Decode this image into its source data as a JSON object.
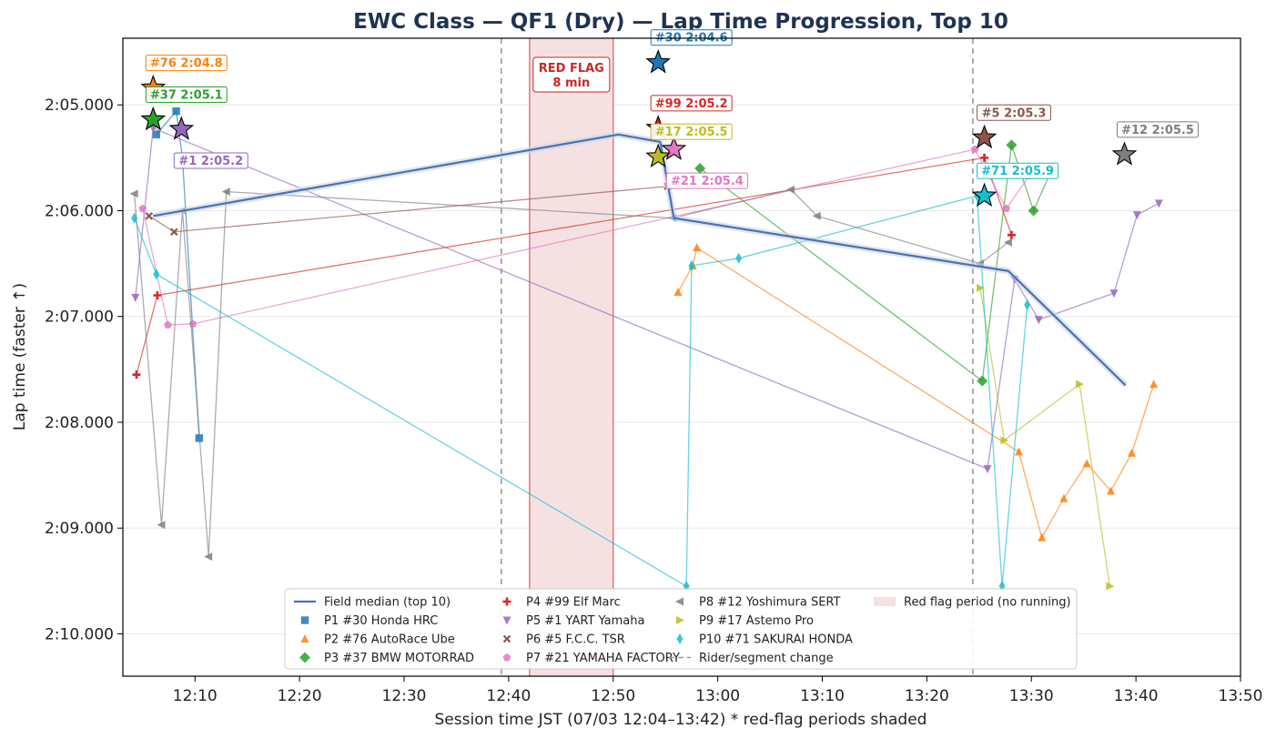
{
  "chart_data": {
    "type": "line",
    "title": "EWC Class — QF1 (Dry) — Lap Time Progression, Top 10",
    "xlabel": "Session time JST (07/03 12:04–13:42)   * red-flag periods shaded",
    "ylabel": "Lap time (faster ↑)",
    "x_unit": "minutes after 12:00 JST",
    "y_unit": "seconds (m:ss.sss on axis)",
    "xlim": [
      3.1,
      110
    ],
    "ylim": [
      124.37,
      130.4
    ],
    "y_inverted": true,
    "x_ticks": [
      {
        "v": 10,
        "label": "12:10"
      },
      {
        "v": 20,
        "label": "12:20"
      },
      {
        "v": 30,
        "label": "12:30"
      },
      {
        "v": 40,
        "label": "12:40"
      },
      {
        "v": 50,
        "label": "12:50"
      },
      {
        "v": 60,
        "label": "13:00"
      },
      {
        "v": 70,
        "label": "13:10"
      },
      {
        "v": 80,
        "label": "13:20"
      },
      {
        "v": 90,
        "label": "13:30"
      },
      {
        "v": 100,
        "label": "13:40"
      },
      {
        "v": 110,
        "label": "13:50"
      }
    ],
    "y_ticks": [
      {
        "v": 125,
        "label": "2:05.000"
      },
      {
        "v": 126,
        "label": "2:06.000"
      },
      {
        "v": 127,
        "label": "2:07.000"
      },
      {
        "v": 128,
        "label": "2:08.000"
      },
      {
        "v": 129,
        "label": "2:09.000"
      },
      {
        "v": 130,
        "label": "2:10.000"
      }
    ],
    "grid": "horizontal",
    "red_flag": {
      "start": 42.0,
      "end": 50.0,
      "label_line1": "RED FLAG",
      "label_line2": "8 min"
    },
    "rider_changes": [
      39.3,
      84.4
    ],
    "median": {
      "name": "Field median (top 10)",
      "color": "#4c72b0",
      "x": [
        6.0,
        50.5,
        54.5,
        55.8,
        87.8,
        99.0
      ],
      "y": [
        126.05,
        125.28,
        125.35,
        126.07,
        126.57,
        127.65
      ]
    },
    "series": [
      {
        "name": "P1 #30 Honda HRC",
        "color": "#1f77b4",
        "marker": "square",
        "x": [
          6.3,
          8.2,
          8.8,
          10.4
        ],
        "y": [
          125.28,
          125.06,
          125.5,
          128.15
        ]
      },
      {
        "name": "P2 #76 AutoRace Ube",
        "color": "#ff7f0e",
        "marker": "triangle-up",
        "x": [
          56.2,
          57.6,
          58.0,
          88.8,
          91.0,
          93.1,
          95.3,
          97.6,
          99.6,
          101.7
        ],
        "y": [
          126.77,
          126.52,
          126.35,
          128.28,
          129.09,
          128.72,
          128.39,
          128.65,
          128.29,
          127.64
        ]
      },
      {
        "name": "P3 #37 BMW MOTORRAD",
        "color": "#2ca02c",
        "marker": "diamond",
        "x": [
          58.3,
          85.3,
          88.1,
          90.2,
          92.0
        ],
        "y": [
          125.6,
          127.61,
          125.38,
          126.0,
          125.6
        ]
      },
      {
        "name": "P4 #99 Elf Marc",
        "color": "#d62728",
        "marker": "plus",
        "x": [
          4.4,
          6.4,
          85.5,
          88.1
        ],
        "y": [
          127.55,
          126.8,
          125.5,
          126.23
        ]
      },
      {
        "name": "P5 #1 YART Yamaha",
        "color": "#9467bd",
        "marker": "triangle-down",
        "x": [
          4.3,
          6.0,
          85.8,
          88.4,
          90.7,
          97.9,
          100.1,
          102.2
        ],
        "y": [
          126.82,
          125.22,
          128.44,
          126.65,
          127.03,
          126.78,
          126.04,
          125.93
        ]
      },
      {
        "name": "P6 #5 F.C.C. TSR",
        "color": "#8c564b",
        "marker": "x",
        "x": [
          5.6,
          8.0,
          55.2
        ],
        "y": [
          126.05,
          126.2,
          125.77
        ]
      },
      {
        "name": "P7 #21 YAMAHA FACTORY",
        "color": "#e377c2",
        "marker": "pentagon",
        "x": [
          5.0,
          7.4,
          9.8,
          84.6,
          87.6,
          89.8
        ],
        "y": [
          125.98,
          127.08,
          127.07,
          125.42,
          125.98,
          125.67
        ]
      },
      {
        "name": "P8 #12 Yoshimura SERT",
        "color": "#7f7f7f",
        "marker": "triangle-left",
        "x": [
          4.2,
          6.8,
          8.8,
          11.3,
          13.0,
          55.7,
          67.0,
          69.5,
          85.1,
          87.8
        ],
        "y": [
          125.84,
          128.97,
          126.0,
          129.27,
          125.82,
          126.07,
          125.8,
          126.05,
          126.5,
          126.3
        ]
      },
      {
        "name": "P9 #17 Astemo Pro",
        "color": "#bcbd22",
        "marker": "triangle-right",
        "x": [
          85.1,
          87.4,
          94.6,
          97.5
        ],
        "y": [
          126.73,
          128.17,
          127.64,
          129.55
        ]
      },
      {
        "name": "P10 #71 SAKURAI HONDA",
        "color": "#17becf",
        "marker": "thin-diamond",
        "x": [
          4.2,
          6.3,
          57.0,
          57.5,
          62.0,
          84.8,
          87.2,
          89.6
        ],
        "y": [
          126.07,
          126.6,
          129.55,
          126.52,
          126.45,
          125.86,
          129.55,
          126.89
        ]
      }
    ],
    "bests": [
      {
        "label": "#30 2:04.6",
        "color": "#1f77b4",
        "x": 54.3,
        "y": 124.6,
        "label_side": "above"
      },
      {
        "label": "#76 2:04.8",
        "color": "#ff7f0e",
        "x": 6.0,
        "y": 124.84,
        "label_side": "above"
      },
      {
        "label": "#37 2:05.1",
        "color": "#2ca02c",
        "x": 6.0,
        "y": 125.14,
        "label_side": "above"
      },
      {
        "label": "#99 2:05.2",
        "color": "#d62728",
        "x": 54.3,
        "y": 125.22,
        "label_side": "above"
      },
      {
        "label": "#1 2:05.2",
        "color": "#9467bd",
        "x": 8.7,
        "y": 125.23,
        "label_side": "below"
      },
      {
        "label": "#5 2:05.3",
        "color": "#8c564b",
        "x": 85.5,
        "y": 125.31,
        "label_side": "above"
      },
      {
        "label": "#21 2:05.4",
        "color": "#e377c2",
        "x": 55.8,
        "y": 125.42,
        "label_side": "below"
      },
      {
        "label": "#12 2:05.5",
        "color": "#7f7f7f",
        "x": 98.9,
        "y": 125.47,
        "label_side": "above"
      },
      {
        "label": "#17 2:05.5",
        "color": "#bcbd22",
        "x": 54.3,
        "y": 125.49,
        "label_side": "above"
      },
      {
        "label": "#71 2:05.9",
        "color": "#17becf",
        "x": 85.5,
        "y": 125.86,
        "label_side": "above"
      }
    ],
    "legend_extra": {
      "rider_change": "Rider/segment change",
      "red_flag": "Red flag period (no running)"
    },
    "legend_position": "lower-center"
  }
}
